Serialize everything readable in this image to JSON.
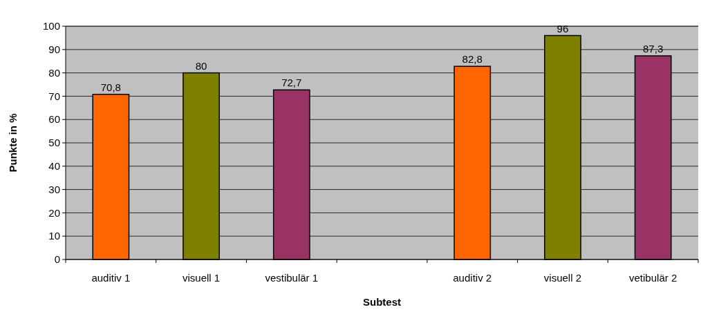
{
  "chart_data": {
    "type": "bar",
    "categories": [
      "auditiv 1",
      "visuell 1",
      "vestibulär 1",
      null,
      "auditiv 2",
      "visuell 2",
      "vetibulär 2"
    ],
    "values": [
      70.8,
      80,
      72.7,
      null,
      82.8,
      96,
      87.3
    ],
    "colors": [
      "#ff6600",
      "#808000",
      "#993366",
      null,
      "#ff6600",
      "#808000",
      "#993366"
    ],
    "value_labels": [
      "70,8",
      "80",
      "72,7",
      null,
      "82,8",
      "96",
      "87,3"
    ],
    "xlabel": "Subtest",
    "ylabel": "Punkte in %",
    "ylim": [
      0,
      100
    ],
    "yticks": [
      0,
      10,
      20,
      30,
      40,
      50,
      60,
      70,
      80,
      90,
      100
    ],
    "grid": "y"
  }
}
